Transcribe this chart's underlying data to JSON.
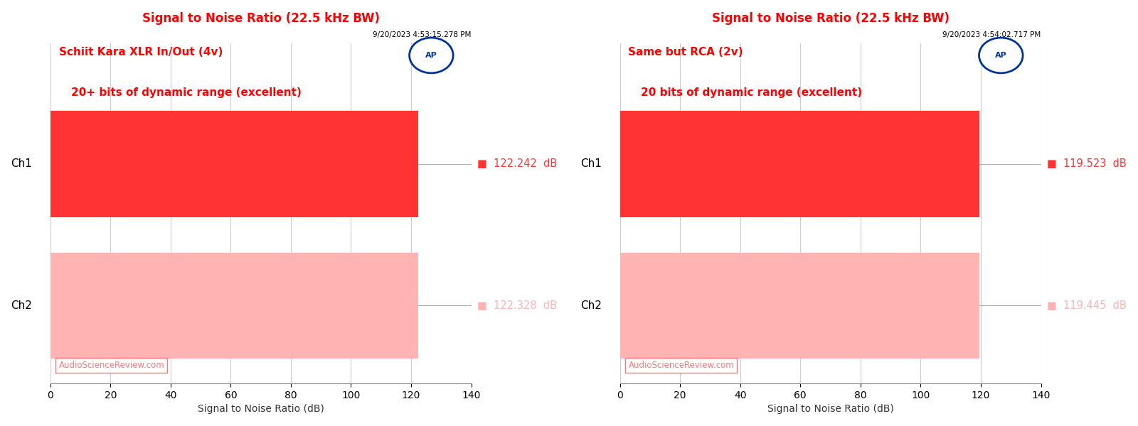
{
  "charts": [
    {
      "title": "Signal to Noise Ratio (22.5 kHz BW)",
      "timestamp": "9/20/2023 4:53:15.278 PM",
      "subtitle1": "Schiit Kara XLR In/Out (4v)",
      "subtitle2": "20+ bits of dynamic range (excellent)",
      "channels": [
        "Ch1",
        "Ch2"
      ],
      "values": [
        122.242,
        122.328
      ],
      "bar_colors": [
        "#FF3333",
        "#FFB3B3"
      ],
      "xlabel": "Signal to Noise Ratio (dB)",
      "xlim": [
        0,
        140
      ],
      "xticks": [
        0,
        20,
        40,
        60,
        80,
        100,
        120,
        140
      ],
      "watermark": "AudioScienceReview.com"
    },
    {
      "title": "Signal to Noise Ratio (22.5 kHz BW)",
      "timestamp": "9/20/2023 4:54:02.717 PM",
      "subtitle1": "Same but RCA (2v)",
      "subtitle2": "20 bits of dynamic range (excellent)",
      "channels": [
        "Ch1",
        "Ch2"
      ],
      "values": [
        119.523,
        119.445
      ],
      "bar_colors": [
        "#FF3333",
        "#FFB3B3"
      ],
      "xlabel": "Signal to Noise Ratio (dB)",
      "xlim": [
        0,
        140
      ],
      "xticks": [
        0,
        20,
        40,
        60,
        80,
        100,
        120,
        140
      ],
      "watermark": "AudioScienceReview.com"
    }
  ],
  "title_color": "#FF0000",
  "subtitle_color": "#FF0000",
  "timestamp_color": "#000000",
  "channel_label_color": "#000000",
  "watermark_color": "#FF7777",
  "background_color": "#FFFFFF",
  "plot_background_color": "#FFFFFF",
  "grid_color": "#CCCCCC",
  "ap_circle_color": "#003399",
  "ap_text_color": "#FFFFFF"
}
